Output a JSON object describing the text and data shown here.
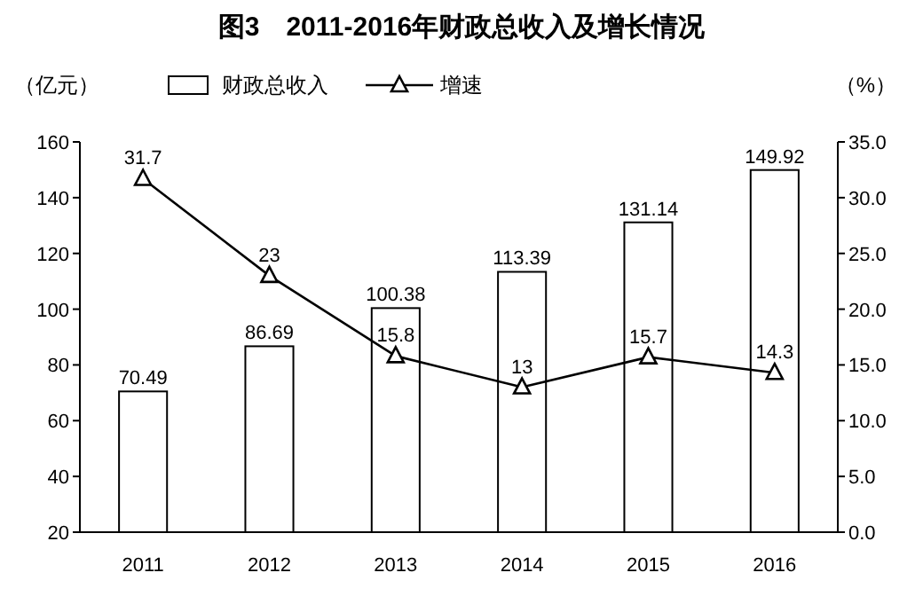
{
  "chart_data": {
    "type": "bar",
    "title": "图3　2011-2016年财政总收入及增长情况",
    "ylabel": "（亿元）",
    "y2label": "（%）",
    "categories": [
      "2011",
      "2012",
      "2013",
      "2014",
      "2015",
      "2016"
    ],
    "series": [
      {
        "name": "财政总收入",
        "color": "#ffffff",
        "values": [
          70.49,
          86.69,
          100.38,
          113.39,
          131.14,
          149.92
        ]
      },
      {
        "name": "增速",
        "type": "line",
        "axis": "y2",
        "color": "#000000",
        "marker": "triangle",
        "values": [
          31.7,
          23,
          15.8,
          13,
          15.7,
          14.3
        ]
      }
    ],
    "ylim": [
      20,
      160
    ],
    "yticks": [
      20,
      40,
      60,
      80,
      100,
      120,
      140,
      160
    ],
    "y2lim": [
      0,
      35
    ],
    "y2ticks": [
      {
        "value": 0,
        "label": "0.0"
      },
      {
        "value": 5,
        "label": "5.0"
      },
      {
        "value": 10,
        "label": "10.0"
      },
      {
        "value": 15,
        "label": "15.0"
      },
      {
        "value": 20,
        "label": "20.0"
      },
      {
        "value": 25,
        "label": "25.0"
      },
      {
        "value": 30,
        "label": "30.0"
      },
      {
        "value": 35,
        "label": "35.0"
      }
    ],
    "legend": "top",
    "data_labels": true,
    "grid": false
  }
}
